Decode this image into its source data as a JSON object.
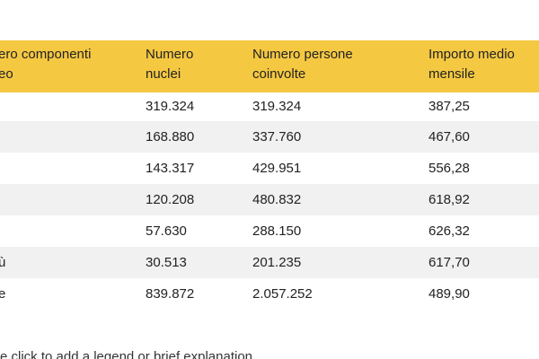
{
  "table": {
    "header": [
      "ero componenti\neo",
      "Numero\nnuclei",
      "Numero persone\ncoinvolte",
      "Importo medio\nmensile"
    ],
    "rows": [
      [
        null,
        "319.324",
        "319.324",
        "387,25"
      ],
      [
        null,
        "168.880",
        "337.760",
        "467,60"
      ],
      [
        null,
        "143.317",
        "429.951",
        "556,28"
      ],
      [
        null,
        "120.208",
        "480.832",
        "618,92"
      ],
      [
        null,
        "57.630",
        "288.150",
        "626,32"
      ],
      [
        "ù",
        "30.513",
        "201.235",
        "617,70"
      ],
      [
        "e",
        "839.872",
        "2.057.252",
        "489,90"
      ]
    ]
  },
  "caption": "e click to add a legend or brief explanation"
}
